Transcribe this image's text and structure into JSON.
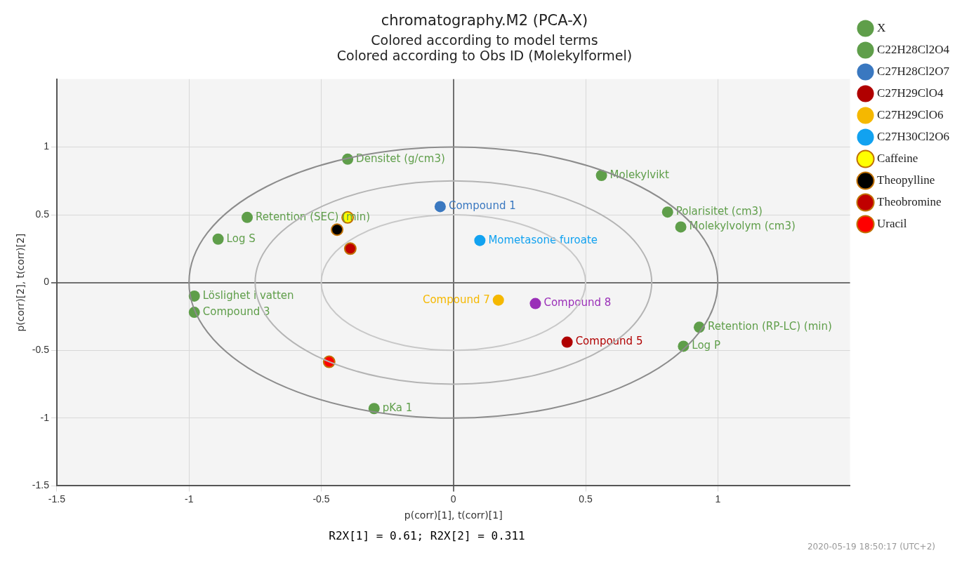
{
  "chart_data": {
    "type": "scatter",
    "title": "chromatography.M2 (PCA-X)",
    "subtitle": [
      "Colored according to model terms",
      "Colored according to Obs ID (Molekylformel)"
    ],
    "xlabel": "p(corr)[1], t(corr)[1]",
    "ylabel": "p(corr)[2], t(corr)[2]",
    "annotations": [
      "R2X[1] = 0.61; R2X[2] = 0.311",
      "2020-05-19 18:50:17 (UTC+2)"
    ],
    "xlim": [
      -1.5,
      1.5
    ],
    "ylim": [
      -1.5,
      1.5
    ],
    "xticks": [
      -1.5,
      -1,
      -0.5,
      0,
      0.5,
      1
    ],
    "yticks": [
      -1.5,
      -1,
      -0.5,
      0,
      0.5,
      1
    ],
    "grid": true,
    "legend": "right",
    "marker": "circle",
    "series": [
      {
        "name": "X",
        "color": "#5f9e4a",
        "x": [
          -0.4,
          0.56,
          0.81,
          0.86,
          -0.78,
          -0.89,
          -0.98,
          0.93,
          0.87,
          -0.3
        ],
        "values": [
          0.91,
          0.79,
          0.52,
          0.41,
          0.48,
          0.32,
          -0.1,
          -0.33,
          -0.47,
          -0.93
        ],
        "value_labels": [
          "Densitet (g/cm3)",
          "Molekylvikt",
          "Polarisitet (cm3)",
          "Molekylvolym (cm3)",
          "Retention (SEC) (min)",
          "Log S",
          "Löslighet i vatten",
          "Retention (RP-LC) (min)",
          "Log P",
          "pKa 1"
        ]
      },
      {
        "name": "C22H28Cl2O4",
        "color": "#5f9e4a",
        "x": [
          -0.98
        ],
        "values": [
          -0.22
        ],
        "value_labels": [
          "Compound 3"
        ]
      },
      {
        "name": "C27H28Cl2O7",
        "color": "#3a78c0",
        "x": [
          -0.05
        ],
        "values": [
          0.56
        ],
        "value_labels": [
          "Compound 1"
        ]
      },
      {
        "name": "C27H29ClO4",
        "color": "#b00000",
        "x": [
          0.43
        ],
        "values": [
          -0.44
        ],
        "value_labels": [
          "Compound 5"
        ]
      },
      {
        "name": "C27H29ClO6",
        "color": "#f5b800",
        "x": [
          0.17
        ],
        "values": [
          -0.13
        ],
        "value_labels": [
          "Compound 7"
        ]
      },
      {
        "name": "C27H30Cl2O6",
        "color": "#12a2f0",
        "x": [
          0.1
        ],
        "values": [
          0.31
        ],
        "value_labels": [
          "Mometasone furoate"
        ]
      },
      {
        "color": "#9a2fb8",
        "x": [
          0.31
        ],
        "values": [
          -0.155
        ],
        "value_labels": [
          "Compound 8"
        ]
      },
      {
        "name": "Caffeine",
        "color": "#ffff00",
        "x": [
          -0.4
        ],
        "values": [
          0.48
        ]
      },
      {
        "name": "Theopylline",
        "color": "#000000",
        "x": [
          -0.44
        ],
        "values": [
          0.39
        ]
      },
      {
        "name": "Theobromine",
        "color": "#c00000",
        "x": [
          -0.39
        ],
        "values": [
          0.25
        ]
      },
      {
        "name": "Uracil",
        "color": "#ff0000",
        "x": [
          -0.47
        ],
        "values": [
          -0.585
        ]
      }
    ]
  }
}
